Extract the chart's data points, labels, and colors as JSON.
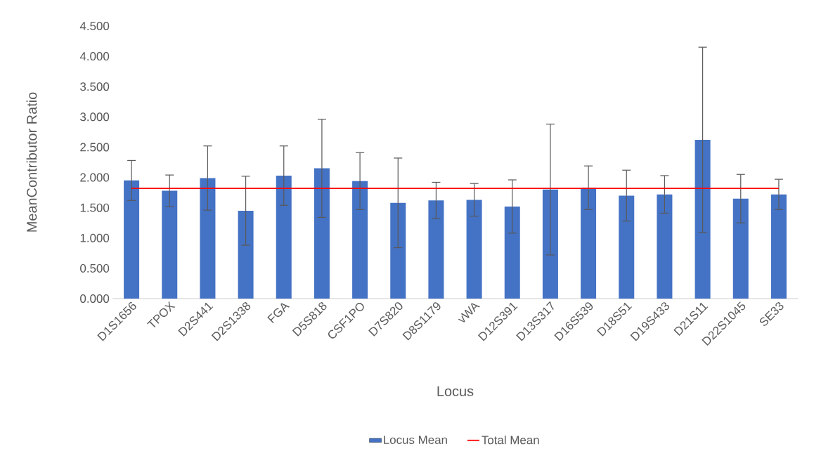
{
  "chart_data": {
    "type": "bar",
    "xlabel": "Locus",
    "ylabel": "MeanContributor Ratio",
    "categories": [
      "D1S1656",
      "TPOX",
      "D2S441",
      "D2S1338",
      "FGA",
      "D5S818",
      "CSF1PO",
      "D7S820",
      "D8S1179",
      "vWA",
      "D12S391",
      "D13S317",
      "D16S539",
      "D18S51",
      "D19S433",
      "D21S11",
      "D22S1045",
      "SE33"
    ],
    "series": [
      {
        "name": "Locus Mean",
        "color": "#4472c4",
        "values": [
          1.95,
          1.78,
          1.99,
          1.45,
          2.03,
          2.15,
          1.94,
          1.58,
          1.62,
          1.63,
          1.52,
          1.8,
          1.83,
          1.7,
          1.72,
          2.62,
          1.65,
          1.72
        ],
        "errors": [
          0.33,
          0.26,
          0.53,
          0.57,
          0.49,
          0.81,
          0.47,
          0.74,
          0.3,
          0.27,
          0.44,
          1.08,
          0.36,
          0.42,
          0.31,
          1.53,
          0.4,
          0.25
        ]
      },
      {
        "name": "Total Mean",
        "type": "line",
        "color": "#ff0000",
        "values": [
          1.82,
          1.82,
          1.82,
          1.82,
          1.82,
          1.82,
          1.82,
          1.82,
          1.82,
          1.82,
          1.82,
          1.82,
          1.82,
          1.82,
          1.82,
          1.82,
          1.82,
          1.82
        ]
      }
    ],
    "ylim": [
      0,
      4.5
    ],
    "yticks": [
      {
        "value": 0,
        "label": "0.000"
      },
      {
        "value": 0.5,
        "label": "0.500"
      },
      {
        "value": 1,
        "label": "1.000"
      },
      {
        "value": 1.5,
        "label": "1.500"
      },
      {
        "value": 2,
        "label": "2.000"
      },
      {
        "value": 2.5,
        "label": "2.500"
      },
      {
        "value": 3,
        "label": "3.000"
      },
      {
        "value": 3.5,
        "label": "3.500"
      },
      {
        "value": 4,
        "label": "4.000"
      },
      {
        "value": 4.5,
        "label": "4.500"
      }
    ],
    "grid": false,
    "legend": "bottom",
    "marker": "none",
    "line_style": "solid"
  }
}
